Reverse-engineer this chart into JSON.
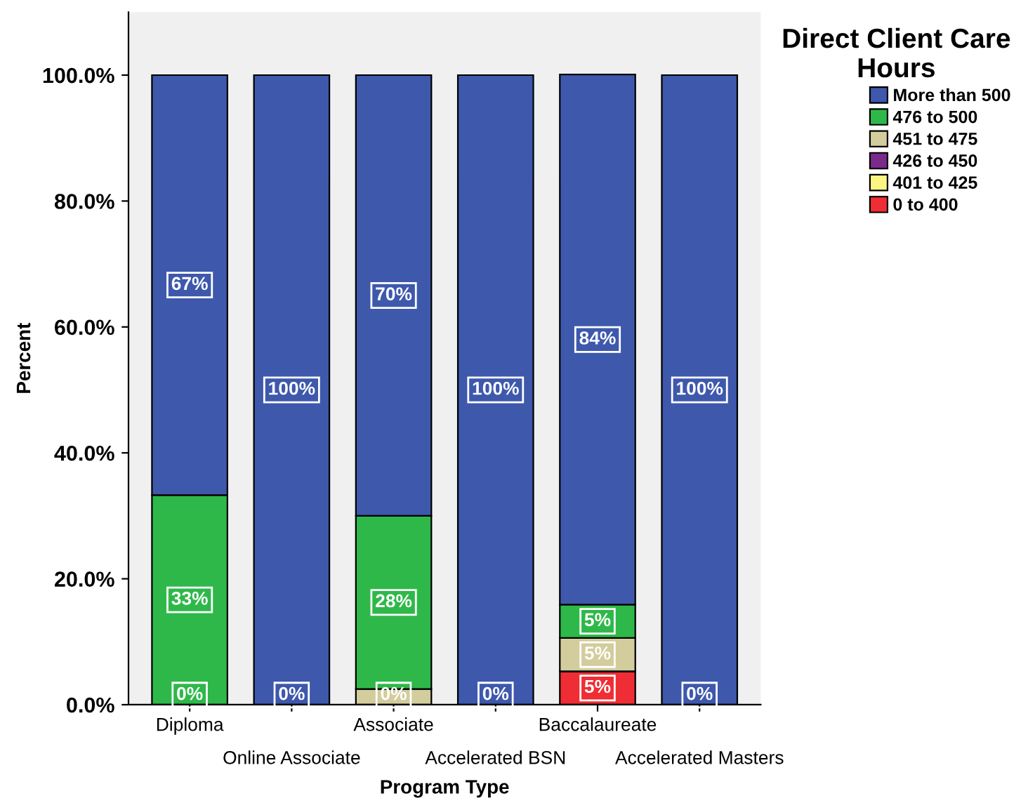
{
  "chart_data": {
    "type": "bar",
    "stacked": true,
    "xlabel": "Program Type",
    "ylabel": "Percent",
    "legend_title": "Direct Client Care\nHours",
    "legend": "top right",
    "categories": [
      "Diploma",
      "Online Associate",
      "Associate",
      "Accelerated BSN",
      "Baccalaureate",
      "Accelerated Masters"
    ],
    "ylim": [
      0,
      110
    ],
    "yticks": [
      {
        "value": 0,
        "label": "0.0%"
      },
      {
        "value": 20,
        "label": "20.0%"
      },
      {
        "value": 40,
        "label": "40.0%"
      },
      {
        "value": 60,
        "label": "60.0%"
      },
      {
        "value": 80,
        "label": "80.0%"
      },
      {
        "value": 100,
        "label": "100.0%"
      }
    ],
    "series": [
      {
        "name": "0 to 400",
        "color": "#ee2e34",
        "values": [
          0,
          0,
          0,
          0,
          5.3,
          0
        ],
        "value_labels": [
          null,
          null,
          null,
          null,
          "5%",
          null
        ]
      },
      {
        "name": "401 to 425",
        "color": "#fbf582",
        "values": [
          0,
          0,
          0,
          0,
          0,
          0
        ],
        "value_labels": [
          null,
          null,
          null,
          null,
          null,
          null
        ]
      },
      {
        "name": "426 to 450",
        "color": "#7a2a8a",
        "values": [
          0,
          0,
          0,
          0,
          0,
          0
        ],
        "value_labels": [
          null,
          null,
          null,
          null,
          null,
          null
        ]
      },
      {
        "name": "451 to 475",
        "color": "#d3cc9c",
        "values": [
          0,
          0,
          2.5,
          0,
          5.3,
          0
        ],
        "value_labels": [
          null,
          null,
          null,
          null,
          "5%",
          null
        ]
      },
      {
        "name": "476 to 500",
        "color": "#2fb84a",
        "values": [
          33.3,
          0,
          27.5,
          0,
          5.3,
          0
        ],
        "value_labels": [
          "33%",
          null,
          "28%",
          null,
          "5%",
          null
        ]
      },
      {
        "name": "More than 500",
        "color": "#3e58ac",
        "values": [
          66.7,
          100,
          70,
          100,
          84.2,
          100
        ],
        "value_labels": [
          "67%",
          "100%",
          "70%",
          "100%",
          "84%",
          "100%"
        ]
      }
    ],
    "annotations": [
      {
        "text": "0%",
        "x": "Diploma",
        "y": 0
      },
      {
        "text": "0%",
        "x": "Online Associate",
        "y": 0
      },
      {
        "text": "0%",
        "x": "Associate",
        "y": 0
      },
      {
        "text": "0%",
        "x": "Accelerated BSN",
        "y": 0
      },
      {
        "text": "0%",
        "x": "Accelerated Masters",
        "y": 0
      }
    ]
  }
}
